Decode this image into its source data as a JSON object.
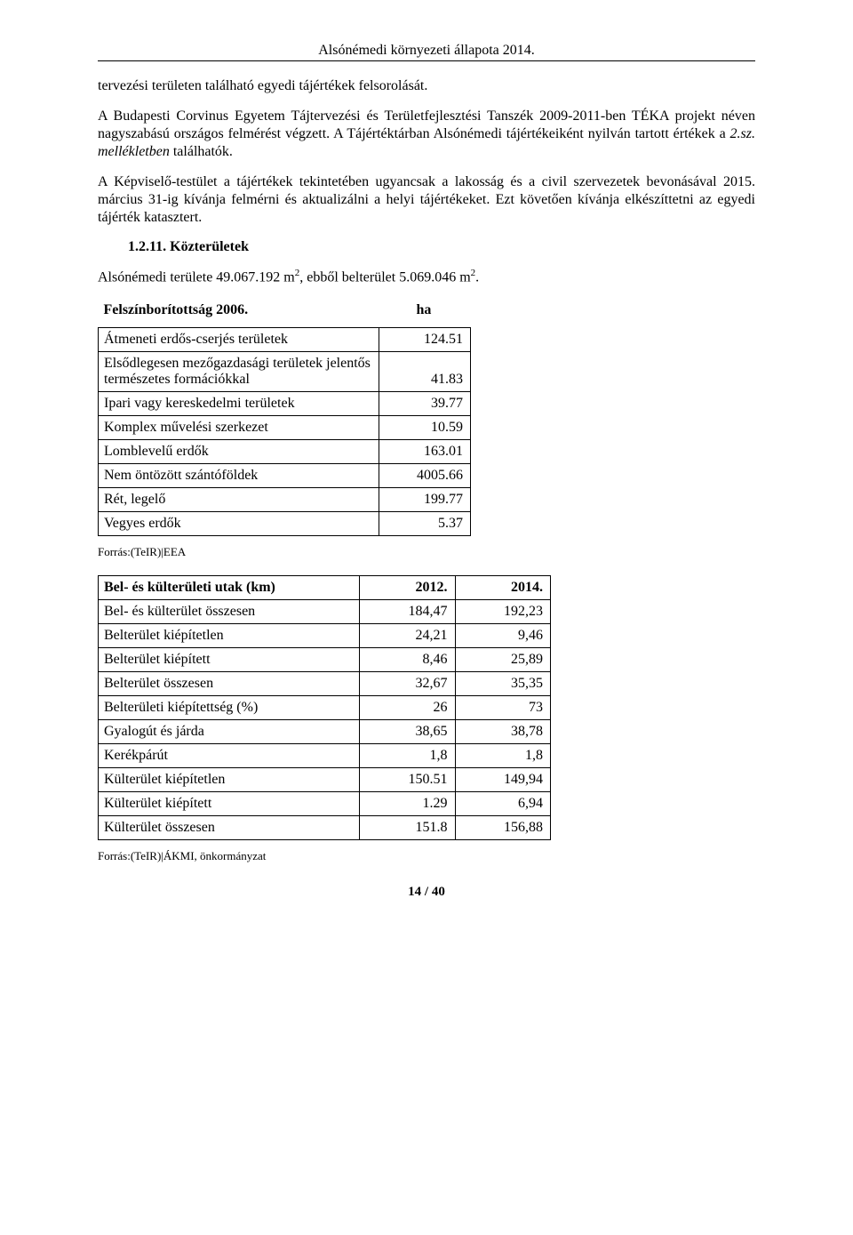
{
  "header": {
    "title": "Alsónémedi környezeti állapota 2014."
  },
  "para1": "tervezési területen található egyedi tájértékek felsorolását.",
  "para2_a": "A Budapesti Corvinus Egyetem Tájtervezési és Területfejlesztési Tanszék 2009-2011-ben TÉKA projekt néven nagyszabású országos felmérést végzett. A Tájértéktárban Alsónémedi tájértékeiként nyilván tartott értékek a ",
  "para2_em": "2.sz. mellékletben",
  "para2_b": " találhatók.",
  "para3": "A Képviselő-testület a tájértékek tekintetében ugyancsak a lakosság és a civil szervezetek bevonásával 2015. március 31-ig kívánja felmérni és aktualizálni a helyi tájértékeket. Ezt követően kívánja elkészíttetni az egyedi tájérték katasztert.",
  "section": "1.2.11. Közterületek",
  "area_line": {
    "pre": "Alsónémedi területe 49.067.192 m",
    "mid": ", ebből belterület 5.069.046 m",
    "post": "."
  },
  "table1": {
    "title": "Felszínborítottság 2006.",
    "unit": "ha",
    "rows": [
      {
        "label": "Átmeneti erdős-cserjés területek",
        "value": "124.51"
      },
      {
        "label": "Elsődlegesen mezőgazdasági területek jelentős természetes formációkkal",
        "value": "41.83",
        "split": true
      },
      {
        "label": "Ipari vagy kereskedelmi területek",
        "value": "39.77"
      },
      {
        "label": "Komplex művelési szerkezet",
        "value": "10.59"
      },
      {
        "label": "Lomblevelű erdők",
        "value": "163.01"
      },
      {
        "label": "Nem öntözött szántóföldek",
        "value": "4005.66"
      },
      {
        "label": "Rét, legelő",
        "value": "199.77"
      },
      {
        "label": "Vegyes erdők",
        "value": "5.37"
      }
    ],
    "source": "Forrás:(TeIR)|EEA"
  },
  "table2": {
    "header": [
      "Bel- és külterületi utak (km)",
      "2012.",
      "2014."
    ],
    "rows": [
      [
        "Bel- és külterület összesen",
        "184,47",
        "192,23"
      ],
      [
        "Belterület kiépítetlen",
        "24,21",
        "9,46"
      ],
      [
        "Belterület kiépített",
        "8,46",
        "25,89"
      ],
      [
        "Belterület összesen",
        "32,67",
        "35,35"
      ],
      [
        "Belterületi kiépítettség (%)",
        "26",
        "73"
      ],
      [
        "Gyalogút és járda",
        "38,65",
        "38,78"
      ],
      [
        "Kerékpárút",
        "1,8",
        "1,8"
      ],
      [
        "Külterület kiépítetlen",
        "150.51",
        "149,94"
      ],
      [
        "Külterület kiépített",
        "1.29",
        "6,94"
      ],
      [
        "Külterület összesen",
        "151.8",
        "156,88"
      ]
    ],
    "source": "Forrás:(TeIR)|ÁKMI, önkormányzat"
  },
  "footer": "14 / 40"
}
